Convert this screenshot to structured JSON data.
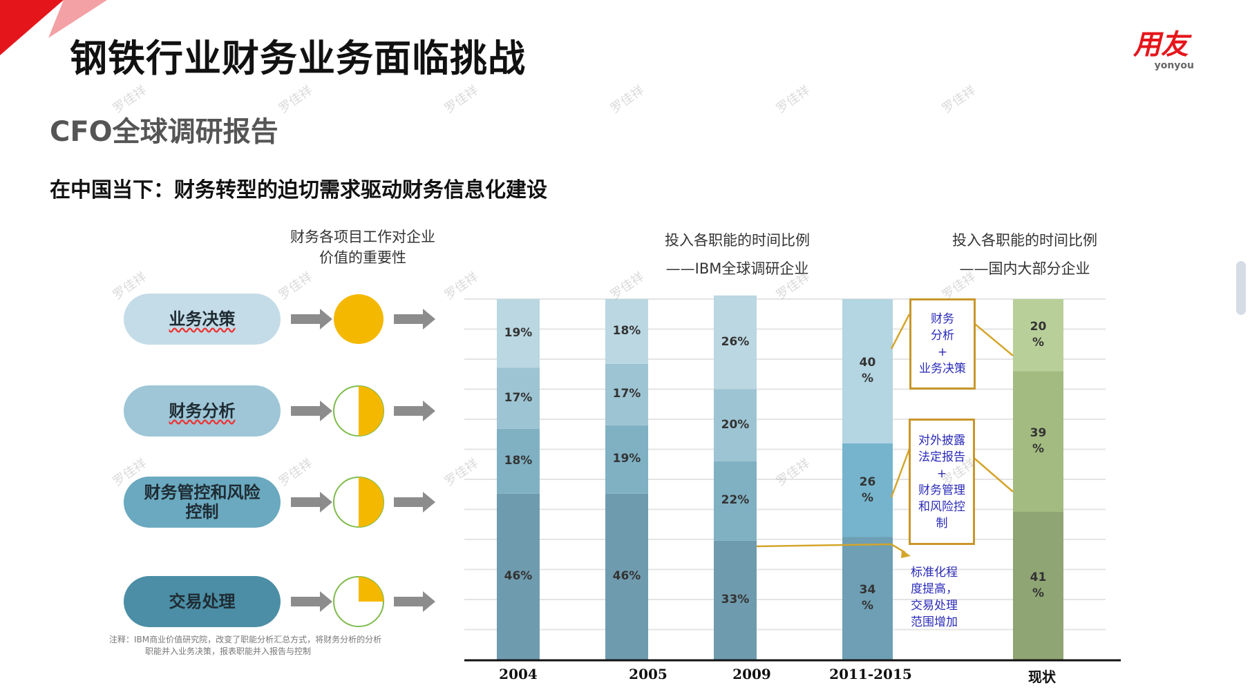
{
  "slide": {
    "title": "钢铁行业财务业务面临挑战",
    "subtitle": "CFO全球调研报告",
    "heading": "在中国当下：财务转型的迫切需求驱动财务信息化建设",
    "logo": {
      "cn": "用友",
      "en": "yonyou",
      "color": "#e5161b"
    },
    "watermark": "罗佳祥",
    "left_header": [
      "财务各项目工作对企业",
      "价值的重要性"
    ],
    "ibm_header": [
      "投入各职能的时间比例",
      "——IBM全球调研企业"
    ],
    "domestic_header": [
      "投入各职能的时间比例",
      "——国内大部分企业"
    ],
    "functions": [
      {
        "label": "业务决策",
        "importance": 1.0,
        "color": "#c4dce7"
      },
      {
        "label": "财务分析",
        "importance": 0.5,
        "color": "#9ec6d7"
      },
      {
        "label": "财务管控和风险控制",
        "importance": 0.5,
        "color": "#6aa9bf"
      },
      {
        "label": "交易处理",
        "importance": 0.25,
        "color": "#4b8ea5"
      }
    ],
    "note": [
      "注释：IBM商业价值研究院，改变了职能分析汇总方式，将财务分析的分析",
      "职能并入业务决策，报表职能并入报告与控制"
    ],
    "annotations": [
      {
        "lines": [
          "财务",
          "分析",
          "+",
          "业务决策"
        ]
      },
      {
        "lines": [
          "对外披露",
          "法定报告",
          "+",
          "财务管理",
          "和风险控",
          "制"
        ]
      },
      {
        "lines": [
          "标准化程",
          "度提高，",
          "交易处理",
          "范围增加"
        ]
      }
    ],
    "accent_color": "#f5b800"
  },
  "chart_data": {
    "type": "bar",
    "stacked": true,
    "categories": [
      "2004",
      "2005",
      "2009",
      "2011-2015",
      "现状"
    ],
    "series": [
      {
        "values": [
          46,
          46,
          33,
          34,
          41
        ],
        "labels": [
          "46%",
          "46%",
          "33%",
          "34\n%",
          "41\n%"
        ]
      },
      {
        "values": [
          18,
          19,
          22,
          26,
          39
        ],
        "labels": [
          "18%",
          "19%",
          "22%",
          "26\n%",
          "39\n%"
        ]
      },
      {
        "values": [
          17,
          17,
          20,
          null,
          null
        ],
        "labels": [
          "17%",
          "17%",
          "20%",
          "",
          ""
        ]
      },
      {
        "values": [
          19,
          18,
          26,
          40,
          20
        ],
        "labels": [
          "19%",
          "18%",
          "26%",
          "40\n%",
          "20\n%"
        ]
      }
    ],
    "colors": {
      "blue": [
        "#6f9bae",
        "#7fb1c3",
        "#9dc4d3",
        "#bad7e2"
      ],
      "blue2011": [
        "#6e9fb4",
        "#75b4cc",
        "",
        "#b4d5e2"
      ],
      "green": [
        "#8fa574",
        "#a3bb80",
        "",
        "#b9cf99"
      ]
    },
    "ylim": [
      0,
      100
    ],
    "grid": true
  }
}
